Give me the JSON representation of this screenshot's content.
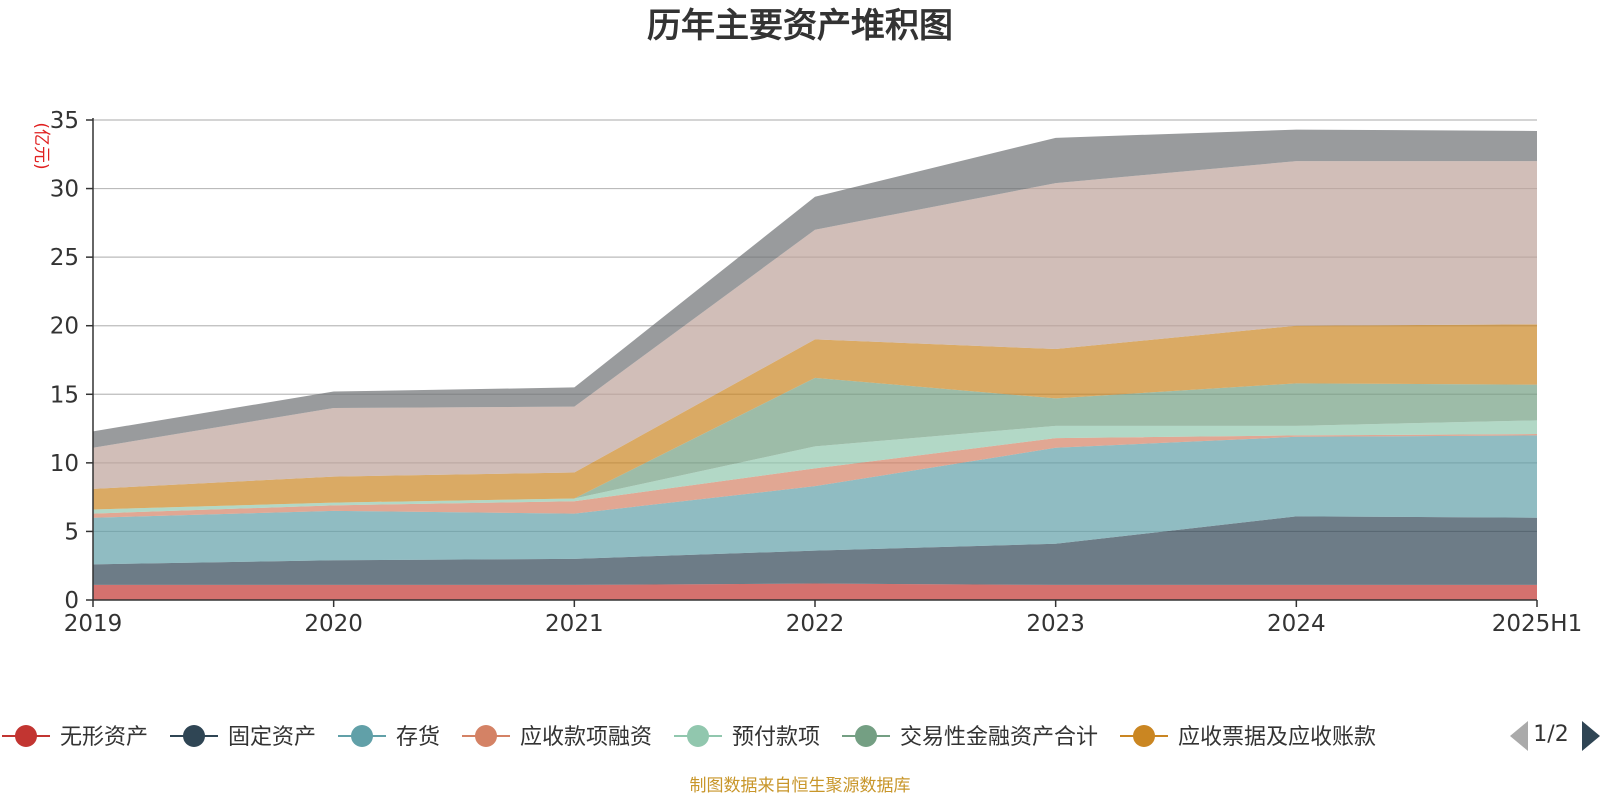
{
  "title": "历年主要资产堆积图",
  "unit_label": "(亿元)",
  "source_text": "制图数据来自恒生聚源数据库",
  "pager": {
    "text": "1/2",
    "prev_icon": "triangle-left-icon",
    "next_icon": "triangle-right-icon"
  },
  "colors": {
    "title": "#333333",
    "unit": "#e02020",
    "source": "#c8962a",
    "axis": "#333333",
    "grid": "#bbbbbb",
    "pager_prev": "#aaaaaa",
    "pager_next": "#2f4554"
  },
  "legend": {
    "items": [
      {
        "label": "无形资产",
        "color": "#c23531"
      },
      {
        "label": "固定资产",
        "color": "#2f4554"
      },
      {
        "label": "存货",
        "color": "#61a0a8"
      },
      {
        "label": "应收款项融资",
        "color": "#d48265"
      },
      {
        "label": "预付款项",
        "color": "#91c7ae"
      },
      {
        "label": "交易性金融资产合计",
        "color": "#749f83"
      },
      {
        "label": "应收票据及应收账款",
        "color": "#ca8622"
      }
    ],
    "page": "1/2"
  },
  "chart_data": {
    "type": "area",
    "stacked": true,
    "title": "历年主要资产堆积图",
    "ylabel": "(亿元)",
    "categories": [
      "2019",
      "2020",
      "2021",
      "2022",
      "2023",
      "2024",
      "2025H1"
    ],
    "ylim": [
      0,
      35
    ],
    "yticks": [
      0,
      5,
      10,
      15,
      20,
      25,
      30,
      35
    ],
    "grid": true,
    "legend_position": "bottom",
    "series": [
      {
        "name": "无形资产",
        "color": "#c23531",
        "values": [
          1.1,
          1.1,
          1.1,
          1.2,
          1.1,
          1.1,
          1.1
        ]
      },
      {
        "name": "固定资产",
        "color": "#2f4554",
        "values": [
          1.5,
          1.8,
          1.9,
          2.4,
          3.0,
          5.0,
          4.9
        ]
      },
      {
        "name": "存货",
        "color": "#61a0a8",
        "values": [
          3.4,
          3.6,
          3.3,
          4.7,
          7.0,
          5.8,
          6.0
        ]
      },
      {
        "name": "应收款项融资",
        "color": "#d48265",
        "values": [
          0.3,
          0.4,
          0.9,
          1.3,
          0.7,
          0.1,
          0.1
        ]
      },
      {
        "name": "预付款项",
        "color": "#91c7ae",
        "values": [
          0.3,
          0.2,
          0.2,
          1.6,
          0.9,
          0.7,
          1.0
        ]
      },
      {
        "name": "交易性金融资产合计",
        "color": "#749f83",
        "values": [
          0,
          0,
          0,
          5.0,
          2.0,
          3.1,
          2.6
        ]
      },
      {
        "name": "应收票据及应收账款",
        "color": "#ca8622",
        "values": [
          1.5,
          1.9,
          1.9,
          2.8,
          3.6,
          4.2,
          4.4
        ]
      },
      {
        "color": "#bda29a",
        "values": [
          3.0,
          5.0,
          4.8,
          8.0,
          12.1,
          12.0,
          11.9
        ]
      },
      {
        "color": "#6e7074",
        "values": [
          1.2,
          1.2,
          1.4,
          2.4,
          3.3,
          2.3,
          2.2
        ]
      }
    ]
  }
}
